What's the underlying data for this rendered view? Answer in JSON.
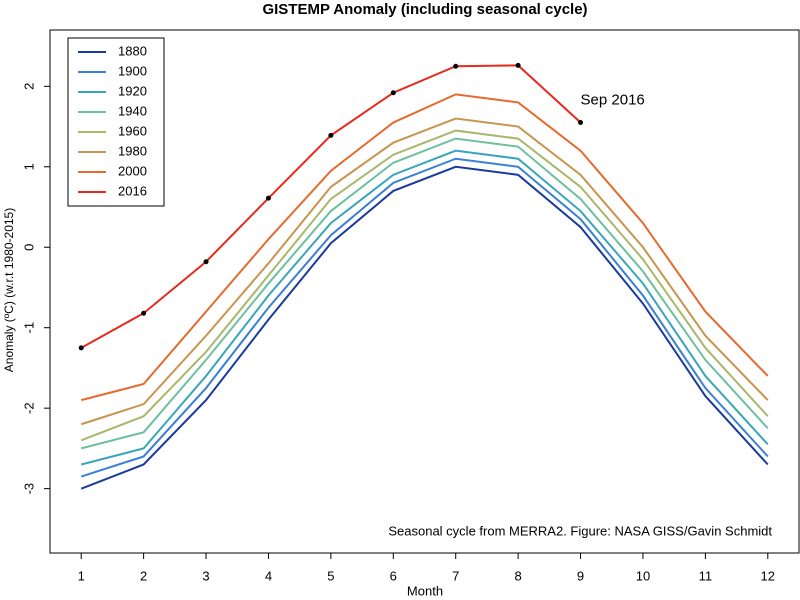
{
  "chart_data": {
    "type": "line",
    "title": "GISTEMP Anomaly (including seasonal cycle)",
    "xlabel": "Month",
    "ylabel": "Anomaly (ºC) (w.r.t 1980-2015)",
    "annotation": "Sep 2016",
    "note": "Seasonal cycle from MERRA2. Figure: NASA GISS/Gavin Schmidt",
    "x": [
      1,
      2,
      3,
      4,
      5,
      6,
      7,
      8,
      9,
      10,
      11,
      12
    ],
    "xlim": [
      0.5,
      12.5
    ],
    "xticks": [
      1,
      2,
      3,
      4,
      5,
      6,
      7,
      8,
      9,
      10,
      11,
      12
    ],
    "ylim": [
      -3.8,
      2.7
    ],
    "yticks": [
      -3,
      -2,
      -1,
      0,
      1,
      2
    ],
    "legend": "top-left",
    "series": [
      {
        "name": "1880",
        "color": "#1a3aa0",
        "values": [
          -3.0,
          -2.7,
          -1.9,
          -0.9,
          0.05,
          0.7,
          1.0,
          0.9,
          0.25,
          -0.7,
          -1.85,
          -2.7
        ]
      },
      {
        "name": "1900",
        "color": "#3a7fd6",
        "values": [
          -2.85,
          -2.6,
          -1.75,
          -0.75,
          0.15,
          0.8,
          1.1,
          1.0,
          0.35,
          -0.6,
          -1.75,
          -2.6
        ]
      },
      {
        "name": "1920",
        "color": "#38a6b8",
        "values": [
          -2.7,
          -2.5,
          -1.6,
          -0.6,
          0.3,
          0.9,
          1.2,
          1.1,
          0.45,
          -0.45,
          -1.6,
          -2.45
        ]
      },
      {
        "name": "1940",
        "color": "#6cc0a0",
        "values": [
          -2.5,
          -2.3,
          -1.4,
          -0.45,
          0.45,
          1.05,
          1.35,
          1.25,
          0.6,
          -0.3,
          -1.4,
          -2.25
        ]
      },
      {
        "name": "1960",
        "color": "#a8b86a",
        "values": [
          -2.4,
          -2.1,
          -1.3,
          -0.35,
          0.6,
          1.15,
          1.45,
          1.35,
          0.75,
          -0.15,
          -1.25,
          -2.1
        ]
      },
      {
        "name": "1980",
        "color": "#c8954e",
        "values": [
          -2.2,
          -1.95,
          -1.1,
          -0.2,
          0.75,
          1.3,
          1.6,
          1.5,
          0.9,
          0.0,
          -1.1,
          -1.9
        ]
      },
      {
        "name": "2000",
        "color": "#e6692e",
        "values": [
          -1.9,
          -1.7,
          -0.8,
          0.1,
          0.95,
          1.55,
          1.9,
          1.8,
          1.2,
          0.3,
          -0.8,
          -1.6
        ]
      },
      {
        "name": "2016",
        "color": "#e8281c",
        "values": [
          -1.25,
          -0.82,
          -0.18,
          0.61,
          1.39,
          1.92,
          2.25,
          2.26,
          1.55,
          null,
          null,
          null
        ]
      }
    ]
  }
}
